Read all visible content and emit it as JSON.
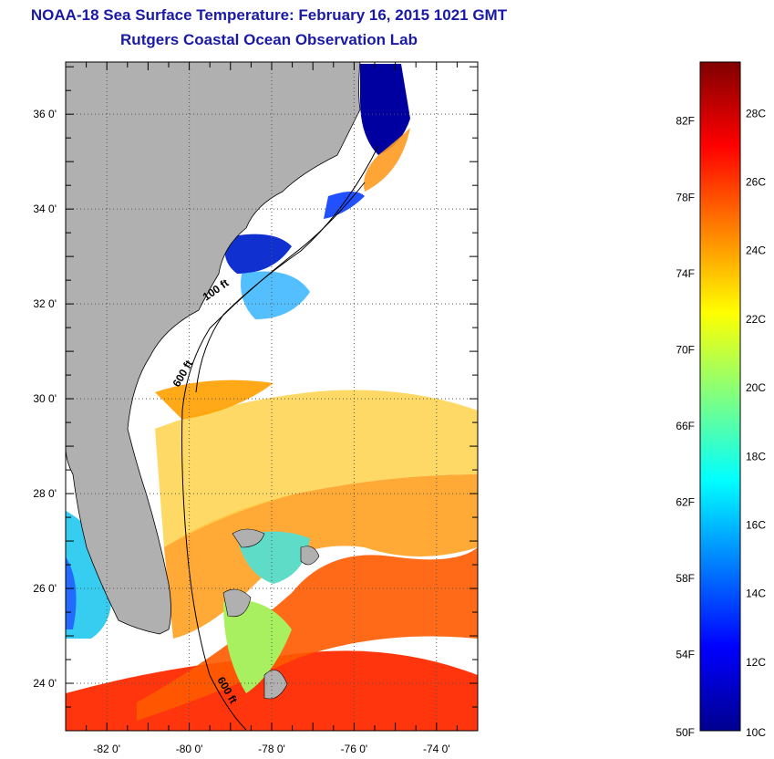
{
  "header": {
    "title": "NOAA-18 Sea Surface Temperature:  February 16, 2015 1021 GMT",
    "subtitle": "Rutgers Coastal Ocean Observation Lab"
  },
  "map": {
    "lat_labels": [
      "36 0'",
      "34 0'",
      "32 0'",
      "30 0'",
      "28 0'",
      "26 0'",
      "24 0'"
    ],
    "lat_values": [
      36,
      34,
      32,
      30,
      28,
      26,
      24
    ],
    "lon_labels": [
      "-82 0'",
      "-80 0'",
      "-78 0'",
      "-76 0'",
      "-74 0'"
    ],
    "lon_values": [
      -82,
      -80,
      -78,
      -76,
      -74
    ],
    "lat_range": [
      23,
      37.1
    ],
    "lon_range": [
      -83,
      -73
    ],
    "contour_labels": [
      "100 ft",
      "600 ft",
      "600 ft"
    ],
    "land_color": "#b0b0b0",
    "cloud_color": "#ffffff"
  },
  "colorbar": {
    "fahrenheit_labels": [
      "82F",
      "78F",
      "74F",
      "70F",
      "66F",
      "62F",
      "58F",
      "54F",
      "50F"
    ],
    "fahrenheit_values": [
      82,
      78,
      74,
      70,
      66,
      62,
      58,
      54,
      50
    ],
    "celsius_labels": [
      "28C",
      "26C",
      "24C",
      "22C",
      "20C",
      "18C",
      "16C",
      "14C",
      "12C",
      "10C"
    ],
    "celsius_values": [
      28,
      26,
      24,
      22,
      20,
      18,
      16,
      14,
      12,
      10
    ],
    "range_celsius": [
      10,
      29.5
    ],
    "colors": [
      "#00008f",
      "#0000ff",
      "#0080ff",
      "#00ffff",
      "#80ff80",
      "#ffff00",
      "#ff8000",
      "#ff0000",
      "#800000"
    ]
  }
}
